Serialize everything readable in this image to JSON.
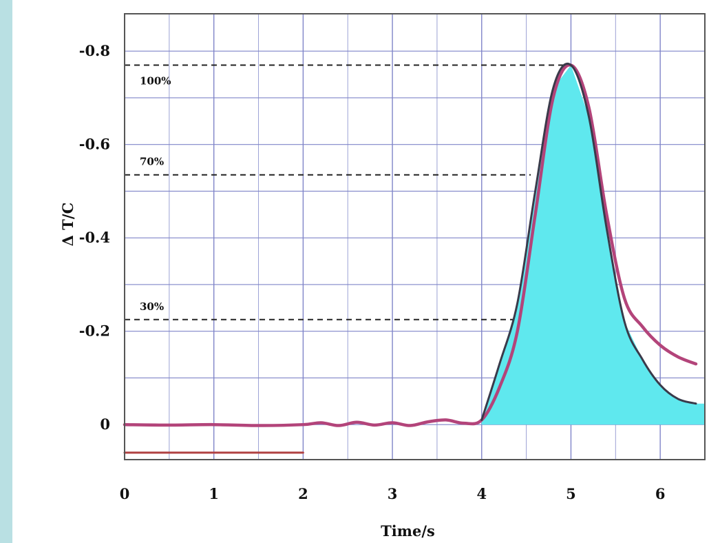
{
  "chart_data": {
    "type": "line",
    "title": "",
    "xlabel": "Time/s",
    "ylabel": "Δ T/C",
    "xlim": [
      0,
      6.5
    ],
    "ylim": [
      0.075,
      -0.88
    ],
    "x_ticks": [
      "0",
      "1",
      "2",
      "3",
      "4",
      "5",
      "6"
    ],
    "y_ticks": [
      "-0.8",
      "-0.6",
      "-0.4",
      "-0.2",
      "0"
    ],
    "grid": true,
    "series": [
      {
        "role": "measured-curve",
        "color": "#b3447a",
        "x": [
          0,
          0.5,
          1.0,
          1.5,
          2.0,
          2.2,
          2.4,
          2.6,
          2.8,
          3.0,
          3.2,
          3.4,
          3.6,
          3.8,
          4.0,
          4.2,
          4.4,
          4.6,
          4.8,
          5.0,
          5.2,
          5.4,
          5.6,
          5.8,
          6.0,
          6.2,
          6.4
        ],
        "y": [
          0,
          0.001,
          0,
          0.002,
          0,
          -0.004,
          0.002,
          -0.005,
          0.001,
          -0.004,
          0.002,
          -0.006,
          -0.01,
          -0.003,
          -0.01,
          -0.08,
          -0.2,
          -0.45,
          -0.7,
          -0.77,
          -0.68,
          -0.45,
          -0.27,
          -0.21,
          -0.17,
          -0.145,
          -0.13
        ]
      },
      {
        "role": "model-curve",
        "color": "#3a3a4a",
        "x": [
          4.0,
          4.2,
          4.4,
          4.6,
          4.8,
          5.0,
          5.2,
          5.4,
          5.6,
          5.8,
          6.0,
          6.2,
          6.4
        ],
        "y": [
          -0.01,
          -0.13,
          -0.26,
          -0.5,
          -0.72,
          -0.77,
          -0.66,
          -0.42,
          -0.22,
          -0.14,
          -0.085,
          -0.055,
          -0.045
        ]
      },
      {
        "role": "baseline-segment",
        "color": "#b04040",
        "x": [
          0,
          2.0
        ],
        "y": [
          0.06,
          0.06
        ]
      }
    ],
    "filled_area": {
      "color": "#5fe8ee",
      "under": "model-curve",
      "x_range": [
        4.0,
        6.5
      ]
    },
    "reference_lines": [
      {
        "label": "100%",
        "value": -0.77,
        "x_end": 4.95
      },
      {
        "label": "70%",
        "value": -0.535,
        "x_end": 4.55
      },
      {
        "label": "30%",
        "value": -0.225,
        "x_end": 4.35
      }
    ]
  }
}
